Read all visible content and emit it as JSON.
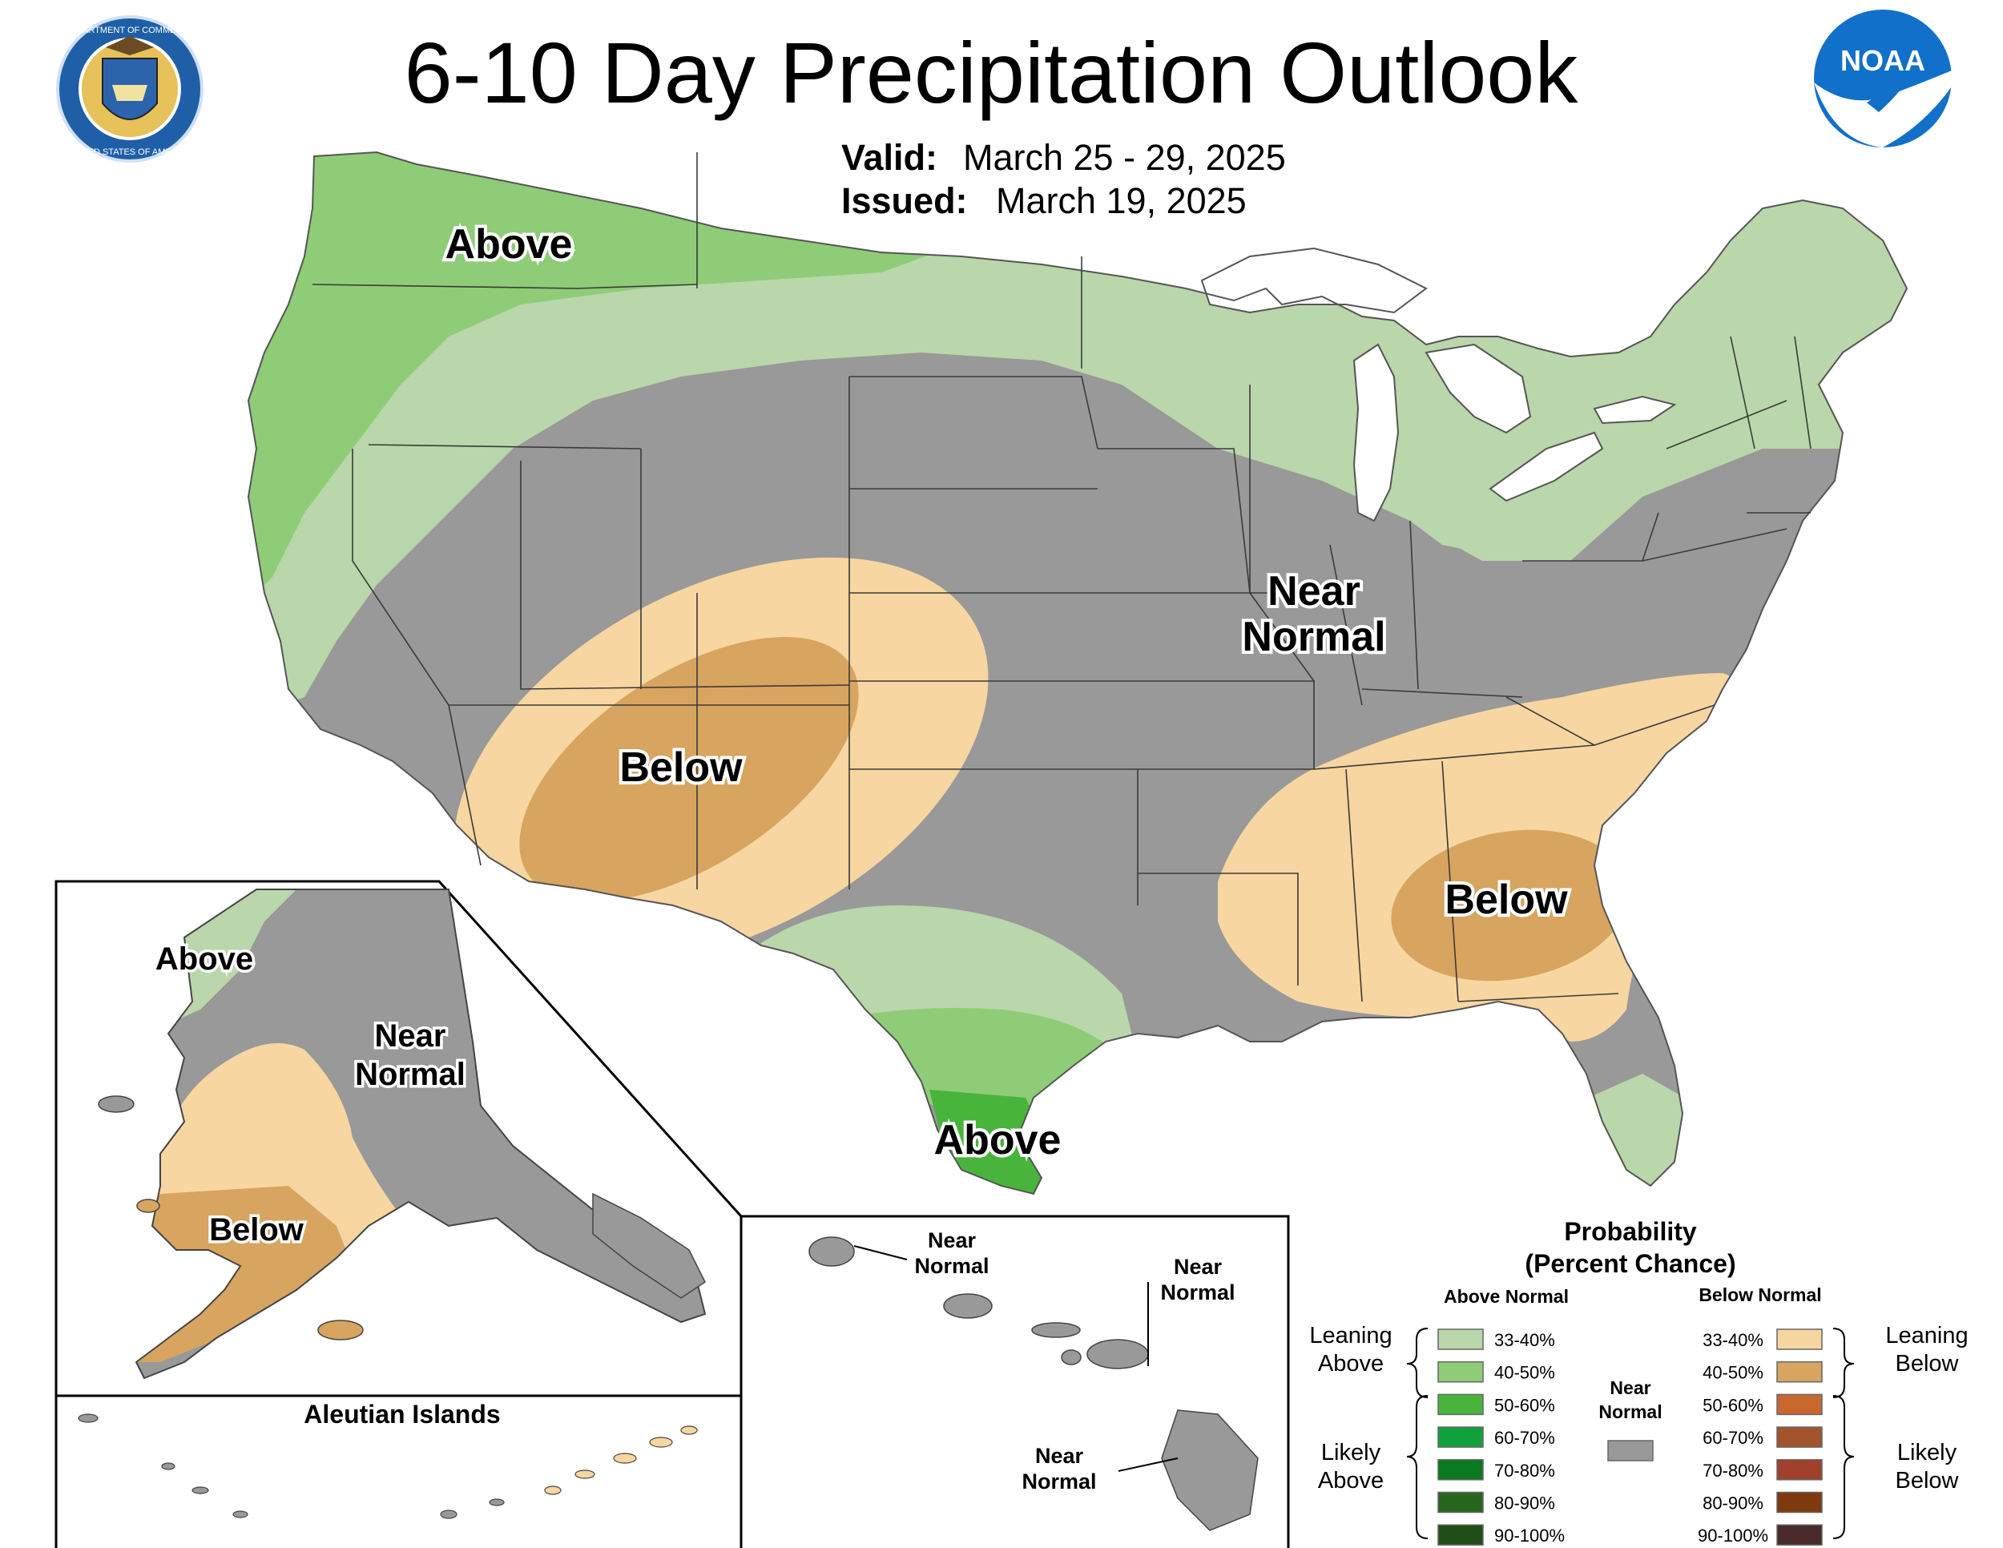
{
  "header": {
    "title": "6-10 Day Precipitation Outlook",
    "valid_label": "Valid:",
    "valid_value": "March 25 - 29, 2025",
    "issued_label": "Issued:",
    "issued_value": "March 19, 2025"
  },
  "logos": {
    "doc_seal": {
      "ring_text_top": "DEPARTMENT OF COMMERCE",
      "ring_text_bottom": "UNITED STATES OF AMERICA"
    },
    "noaa": {
      "text": "NOAA"
    }
  },
  "conus_labels": {
    "above_northwest": "Above",
    "near_normal_line1": "Near",
    "near_normal_line2": "Normal",
    "below_southwest": "Below",
    "below_southeast": "Below",
    "above_texas": "Above"
  },
  "alaska": {
    "above": "Above",
    "near_line1": "Near",
    "near_line2": "Normal",
    "below": "Below",
    "aleutian_title": "Aleutian Islands"
  },
  "hawaii": {
    "label_a_line1": "Near",
    "label_a_line2": "Normal",
    "label_b_line1": "Near",
    "label_b_line2": "Normal",
    "label_c_line1": "Near",
    "label_c_line2": "Normal"
  },
  "colors": {
    "above_33_40": "#b9d7aa",
    "above_40_50": "#8fcc78",
    "above_50_60": "#48b43b",
    "above_60_70": "#10a03c",
    "above_70_80": "#0a7a1e",
    "above_80_90": "#28651e",
    "above_90_100": "#214d16",
    "near_normal": "#999999",
    "below_33_40": "#f7d6a1",
    "below_40_50": "#d7a560",
    "below_50_60": "#c8682f",
    "below_60_70": "#a2542d",
    "below_70_80": "#a0402d",
    "below_80_90": "#7e3a0c",
    "below_90_100": "#4a2a2b",
    "lakes": "#ffffff",
    "border": "#3a3a3a"
  },
  "legend": {
    "title_line1": "Probability",
    "title_line2": "(Percent Chance)",
    "above_header": "Above Normal",
    "below_header": "Below Normal",
    "near_line1": "Near",
    "near_line2": "Normal",
    "leaning_above_1": "Leaning",
    "leaning_above_2": "Above",
    "likely_above_1": "Likely",
    "likely_above_2": "Above",
    "leaning_below_1": "Leaning",
    "leaning_below_2": "Below",
    "likely_below_1": "Likely",
    "likely_below_2": "Below",
    "above_rows": [
      {
        "range": "33-40%",
        "color": "#b9d7aa"
      },
      {
        "range": "40-50%",
        "color": "#8fcc78"
      },
      {
        "range": "50-60%",
        "color": "#48b43b"
      },
      {
        "range": "60-70%",
        "color": "#10a03c"
      },
      {
        "range": "70-80%",
        "color": "#0a7a1e"
      },
      {
        "range": "80-90%",
        "color": "#28651e"
      },
      {
        "range": "90-100%",
        "color": "#214d16"
      }
    ],
    "below_rows": [
      {
        "range": "33-40%",
        "color": "#f7d6a1"
      },
      {
        "range": "40-50%",
        "color": "#d7a560"
      },
      {
        "range": "50-60%",
        "color": "#c8682f"
      },
      {
        "range": "60-70%",
        "color": "#a2542d"
      },
      {
        "range": "70-80%",
        "color": "#a0402d"
      },
      {
        "range": "80-90%",
        "color": "#7e3a0c"
      },
      {
        "range": "90-100%",
        "color": "#4a2a2b"
      }
    ]
  }
}
